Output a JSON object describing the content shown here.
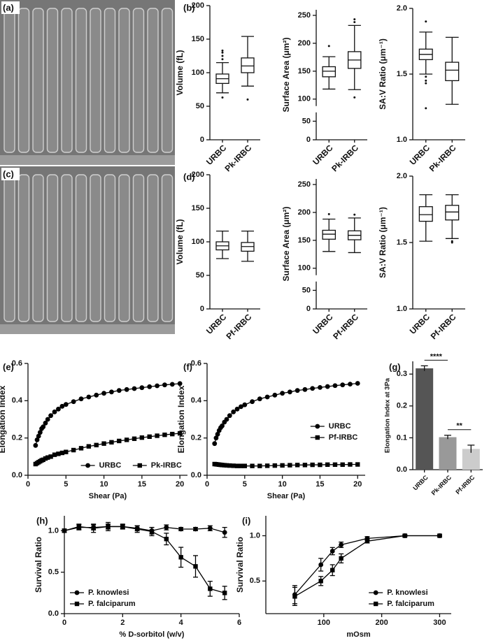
{
  "images": [
    {
      "label": "(a)"
    },
    {
      "label": "(c)"
    }
  ],
  "chart_data": [
    {
      "type": "box",
      "panel": "(b)",
      "ylabel": "Volume (fL)",
      "categories": [
        "URBC",
        "Pk-IRBC"
      ],
      "ylim": [
        0,
        200
      ],
      "yticks": [
        0,
        50,
        100,
        150,
        200
      ],
      "boxes": [
        {
          "min": 70,
          "q1": 84,
          "median": 91,
          "q3": 98,
          "max": 115,
          "outliers": [
            120,
            125,
            130,
            133,
            63
          ]
        },
        {
          "min": 80,
          "q1": 100,
          "median": 110,
          "q3": 122,
          "max": 154,
          "outliers": [
            60
          ]
        }
      ]
    },
    {
      "type": "box",
      "ylabel": "Surface Area (μm²)",
      "categories": [
        "URBC",
        "Pk-IRBC"
      ],
      "ylim": [
        0,
        260
      ],
      "axis_break": [
        70,
        90
      ],
      "yticks": [
        0,
        50,
        100,
        150,
        200,
        250
      ],
      "boxes": [
        {
          "min": 118,
          "q1": 140,
          "median": 150,
          "q3": 158,
          "max": 176,
          "outliers": [
            195
          ]
        },
        {
          "min": 117,
          "q1": 155,
          "median": 170,
          "q3": 185,
          "max": 232,
          "outliers": [
            238,
            243,
            103
          ]
        }
      ]
    },
    {
      "type": "box",
      "ylabel": "SA:V Ratio (μm⁻¹)",
      "categories": [
        "URBC",
        "Pk-IRBC"
      ],
      "ylim": [
        1.0,
        2.0
      ],
      "yticks": [
        {
          "value": 1.0,
          "label": "1.0"
        },
        1.5,
        {
          "value": 2.0,
          "label": "2.0"
        }
      ],
      "boxes": [
        {
          "min": 1.5,
          "q1": 1.61,
          "median": 1.65,
          "q3": 1.69,
          "max": 1.82,
          "outliers": [
            1.9,
            1.48,
            1.45,
            1.43,
            1.24
          ]
        },
        {
          "min": 1.27,
          "q1": 1.45,
          "median": 1.53,
          "q3": 1.59,
          "max": 1.78,
          "outliers": []
        }
      ]
    },
    {
      "type": "box",
      "panel": "(d)",
      "ylabel": "Volume (fL)",
      "categories": [
        "URBC",
        "Pf-IRBC"
      ],
      "ylim": [
        0,
        200
      ],
      "yticks": [
        0,
        50,
        100,
        150,
        200
      ],
      "boxes": [
        {
          "min": 75,
          "q1": 88,
          "median": 94,
          "q3": 100,
          "max": 116,
          "outliers": []
        },
        {
          "min": 71,
          "q1": 86,
          "median": 93,
          "q3": 99,
          "max": 116,
          "outliers": []
        }
      ]
    },
    {
      "type": "box",
      "ylabel": "Surface Area (μm²)",
      "categories": [
        "URBC",
        "Pf-IRBC"
      ],
      "ylim": [
        0,
        260
      ],
      "axis_break": [
        70,
        90
      ],
      "yticks": [
        0,
        50,
        100,
        150,
        200,
        250
      ],
      "boxes": [
        {
          "min": 130,
          "q1": 152,
          "median": 161,
          "q3": 168,
          "max": 188,
          "outliers": [
            197
          ]
        },
        {
          "min": 128,
          "q1": 151,
          "median": 159,
          "q3": 167,
          "max": 190,
          "outliers": [
            196
          ]
        }
      ]
    },
    {
      "type": "box",
      "ylabel": "SA:V Ratio (μm⁻¹)",
      "categories": [
        "URBC",
        "Pf-IRBC"
      ],
      "ylim": [
        1.0,
        2.0
      ],
      "yticks": [
        {
          "value": 1.0,
          "label": "1.0"
        },
        1.5,
        {
          "value": 2.0,
          "label": "2.0"
        }
      ],
      "boxes": [
        {
          "min": 1.51,
          "q1": 1.66,
          "median": 1.71,
          "q3": 1.77,
          "max": 1.86,
          "outliers": []
        },
        {
          "min": 1.53,
          "q1": 1.67,
          "median": 1.73,
          "q3": 1.78,
          "max": 1.86,
          "outliers": [
            1.51,
            1.5
          ]
        }
      ]
    },
    {
      "type": "line",
      "panel": "(e)",
      "xlabel": "Shear (Pa)",
      "ylabel": "Elongation Index",
      "xlim": [
        0,
        21
      ],
      "xticks": [
        0,
        5,
        10,
        15,
        20
      ],
      "ylim": [
        0,
        0.6
      ],
      "yticks": [
        {
          "value": 0,
          "label": "0.0"
        },
        0.2,
        0.4,
        0.6
      ],
      "legend": "lower right",
      "legend_ncol": 2,
      "x": [
        1,
        1.2,
        1.4,
        1.6,
        1.8,
        2,
        2.3,
        2.6,
        3,
        3.5,
        4,
        4.5,
        5,
        6,
        7,
        8,
        9,
        10,
        11,
        12,
        13,
        14,
        15,
        16,
        17,
        18,
        19,
        20
      ],
      "series": [
        {
          "name": "URBC",
          "color": "#000000",
          "marker": "circle",
          "values": [
            0.16,
            0.19,
            0.21,
            0.23,
            0.25,
            0.26,
            0.28,
            0.3,
            0.32,
            0.34,
            0.355,
            0.37,
            0.38,
            0.395,
            0.41,
            0.42,
            0.43,
            0.44,
            0.447,
            0.455,
            0.46,
            0.465,
            0.47,
            0.475,
            0.48,
            0.485,
            0.488,
            0.492
          ]
        },
        {
          "name": "Pk-IRBC",
          "color": "#000000",
          "marker": "square",
          "values": [
            0.06,
            0.065,
            0.07,
            0.075,
            0.08,
            0.083,
            0.09,
            0.095,
            0.1,
            0.11,
            0.115,
            0.12,
            0.125,
            0.135,
            0.145,
            0.155,
            0.162,
            0.17,
            0.177,
            0.184,
            0.19,
            0.196,
            0.202,
            0.207,
            0.212,
            0.217,
            0.221,
            0.225
          ]
        }
      ]
    },
    {
      "type": "line",
      "panel": "(f)",
      "xlabel": "Shear (Pa)",
      "ylabel": "Elongation Index",
      "xlim": [
        0,
        21
      ],
      "xticks": [
        0,
        5,
        10,
        15,
        20
      ],
      "ylim": [
        0,
        0.6
      ],
      "yticks": [
        {
          "value": 0,
          "label": "0.0"
        },
        0.2,
        0.4,
        0.6
      ],
      "legend": "center right",
      "x": [
        1,
        1.2,
        1.4,
        1.6,
        1.8,
        2,
        2.3,
        2.6,
        3,
        3.5,
        4,
        4.5,
        5,
        6,
        7,
        8,
        9,
        10,
        11,
        12,
        13,
        14,
        15,
        16,
        17,
        18,
        19,
        20
      ],
      "series": [
        {
          "name": "URBC",
          "color": "#000000",
          "marker": "circle",
          "values": [
            0.17,
            0.2,
            0.22,
            0.24,
            0.255,
            0.265,
            0.285,
            0.3,
            0.32,
            0.34,
            0.355,
            0.368,
            0.378,
            0.395,
            0.41,
            0.42,
            0.43,
            0.44,
            0.447,
            0.455,
            0.46,
            0.466,
            0.471,
            0.476,
            0.481,
            0.485,
            0.489,
            0.493
          ]
        },
        {
          "name": "Pf-IRBC",
          "color": "#000000",
          "marker": "square",
          "values": [
            0.06,
            0.059,
            0.058,
            0.057,
            0.056,
            0.055,
            0.054,
            0.053,
            0.052,
            0.051,
            0.05,
            0.05,
            0.05,
            0.05,
            0.05,
            0.051,
            0.052,
            0.053,
            0.054,
            0.055,
            0.055,
            0.056,
            0.056,
            0.057,
            0.057,
            0.057,
            0.058,
            0.058
          ]
        }
      ]
    },
    {
      "type": "bar",
      "panel": "(g)",
      "ylabel": "Elongation Index at 3Pa",
      "categories": [
        "URBC",
        "Pk-IRBC",
        "Pf-IRBC"
      ],
      "values": [
        0.318,
        0.102,
        0.065
      ],
      "errors": [
        0.008,
        0.006,
        0.012
      ],
      "colors": [
        "#555555",
        "#999999",
        "#cccccc"
      ],
      "ylim": [
        0,
        0.34
      ],
      "yticks": [
        {
          "value": 0,
          "label": "0.0"
        },
        0.1,
        0.2,
        0.3
      ],
      "annotations": [
        {
          "text": "****",
          "between": [
            "URBC",
            "Pk-IRBC"
          ]
        },
        {
          "text": "**",
          "between": [
            "Pk-IRBC",
            "Pf-IRBC"
          ]
        }
      ]
    },
    {
      "type": "line",
      "panel": "(h)",
      "xlabel": "% D-sorbitol (w/v)",
      "ylabel": "Survival Ratio",
      "xlim": [
        0,
        6
      ],
      "xticks": [
        0,
        2,
        4,
        6
      ],
      "ylim": [
        0,
        1.18
      ],
      "yticks": [
        {
          "value": 0,
          "label": "0.0"
        },
        0.5,
        {
          "value": 1,
          "label": "1.0"
        }
      ],
      "legend": "lower left",
      "x": [
        0,
        0.5,
        1,
        1.5,
        2,
        2.5,
        3,
        3.5,
        4,
        4.5,
        5,
        5.5
      ],
      "series": [
        {
          "name": "P. knowlesi",
          "color": "#000000",
          "marker": "circle",
          "values": [
            1.0,
            1.04,
            1.04,
            1.05,
            1.05,
            1.03,
            1.0,
            1.04,
            1.02,
            1.02,
            1.03,
            0.98
          ],
          "errors": [
            0.02,
            0.03,
            0.03,
            0.03,
            0.02,
            0.03,
            0.04,
            0.03,
            0.02,
            0.02,
            0.03,
            0.06
          ]
        },
        {
          "name": "P. falciparum",
          "color": "#000000",
          "marker": "square",
          "values": [
            1.0,
            1.05,
            1.03,
            1.05,
            1.05,
            1.02,
            0.99,
            0.9,
            0.68,
            0.57,
            0.3,
            0.25
          ],
          "errors": [
            0.02,
            0.03,
            0.05,
            0.05,
            0.03,
            0.04,
            0.05,
            0.07,
            0.12,
            0.13,
            0.09,
            0.08
          ]
        }
      ]
    },
    {
      "type": "line",
      "panel": "(i)",
      "xlabel": "mOsm",
      "ylabel": "Survival Ratio",
      "xlim": [
        0,
        320
      ],
      "xticks": [
        100,
        200,
        300
      ],
      "ylim": [
        0.14,
        1.22
      ],
      "yticks": [
        0.5,
        {
          "value": 1,
          "label": "1.0"
        }
      ],
      "legend": "lower right",
      "x": [
        50,
        95,
        115,
        130,
        175,
        240,
        300
      ],
      "series": [
        {
          "name": "P. knowlesi",
          "color": "#000000",
          "marker": "circle",
          "values": [
            0.35,
            0.68,
            0.83,
            0.9,
            0.97,
            1.0,
            1.0
          ],
          "errors": [
            0.1,
            0.07,
            0.04,
            0.03,
            0.02,
            0.01,
            0.01
          ]
        },
        {
          "name": "P. falciparum",
          "color": "#000000",
          "marker": "square",
          "values": [
            0.33,
            0.5,
            0.62,
            0.75,
            0.94,
            1.0,
            1.0
          ],
          "errors": [
            0.1,
            0.05,
            0.06,
            0.05,
            0.02,
            0.01,
            0.01
          ]
        }
      ]
    }
  ]
}
